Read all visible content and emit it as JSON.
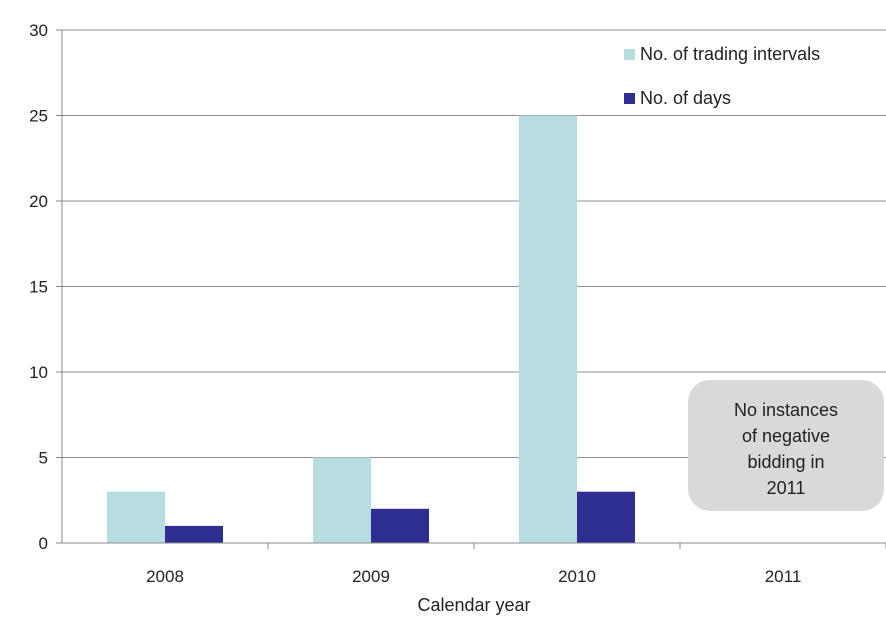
{
  "chart_data": {
    "type": "bar",
    "categories": [
      "2008",
      "2009",
      "2010",
      "2011"
    ],
    "series": [
      {
        "name": "No. of trading intervals",
        "values": [
          3,
          5,
          25,
          0
        ],
        "color": "#b7dde0"
      },
      {
        "name": "No. of days",
        "values": [
          1,
          2,
          3,
          0
        ],
        "color": "#2e2e92"
      }
    ],
    "title": "",
    "xlabel": "Calendar year",
    "ylabel": "",
    "ylim": [
      0,
      30
    ],
    "yticks": [
      0,
      5,
      10,
      15,
      20,
      25,
      30
    ],
    "grid": true,
    "legend_position": "top-right",
    "annotation": {
      "lines": [
        "No instances",
        "of negative",
        "bidding in",
        "2011"
      ],
      "background": "#d9d9d9"
    }
  }
}
